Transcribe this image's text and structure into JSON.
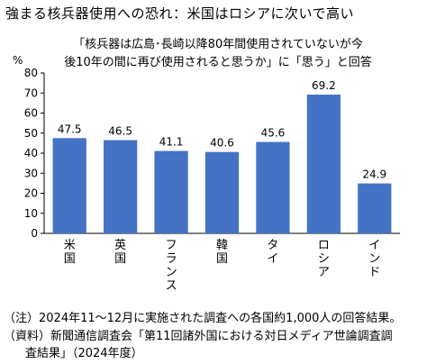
{
  "header": {
    "title": "強まる核兵器使用への恐れ：米国はロシアに次いで高い",
    "subtitle_line1": "「核兵器は広島･長崎以降80年間使用されていないが今",
    "subtitle_line2": "後10年の間に再び使用されると思うか」に「思う」と回答"
  },
  "chart_data": {
    "type": "bar",
    "unit": "%",
    "categories": [
      "米国",
      "英国",
      "フランス",
      "韓国",
      "タイ",
      "ロシア",
      "インド"
    ],
    "values": [
      47.5,
      46.5,
      41.1,
      40.6,
      45.6,
      69.2,
      24.9
    ],
    "data_labels": [
      "47.5",
      "46.5",
      "41.1",
      "40.6",
      "45.6",
      "69.2",
      "24.9"
    ],
    "ylim": [
      0,
      80
    ],
    "yticks": [
      0,
      10,
      20,
      30,
      40,
      50,
      60,
      70,
      80
    ],
    "ytick_labels": [
      "0",
      "10",
      "20",
      "30",
      "40",
      "50",
      "60",
      "70",
      "80"
    ],
    "bar_color": "#4472c4",
    "grid": false,
    "legend": "none"
  },
  "notes": {
    "note1": "（注）2024年11～12月に実施された調査への各国約1,000人の回答結果。",
    "note2": "（資料）新聞通信調査会「第11回諸外国における対日メディア世論調査調",
    "note3": "査結果」（2024年度）"
  }
}
